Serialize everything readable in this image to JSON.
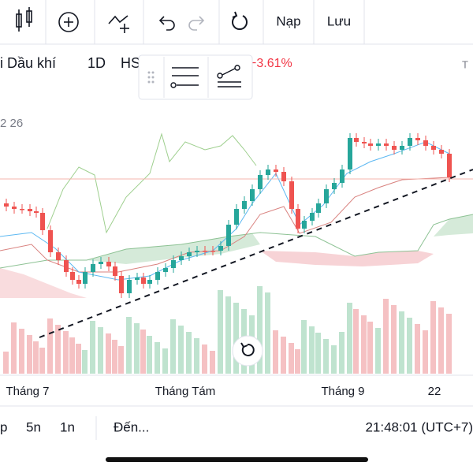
{
  "toolbar": {
    "load": "Nạp",
    "save": "Lưu"
  },
  "legend": {
    "name": "i Dầu khí",
    "interval": "1D",
    "exchange": "HS",
    "change": "−3.61%",
    "right_mark": "T"
  },
  "indicator_label": "2 26",
  "x_axis": {
    "labels": [
      "Tháng 7",
      "Tháng Tám",
      "Tháng 9",
      "22"
    ]
  },
  "bottom_bar": {
    "ranges": [
      "p",
      "5n",
      "1n"
    ],
    "goto": "Đến...",
    "clock": "21:48:01 (UTC+7)"
  }
}
